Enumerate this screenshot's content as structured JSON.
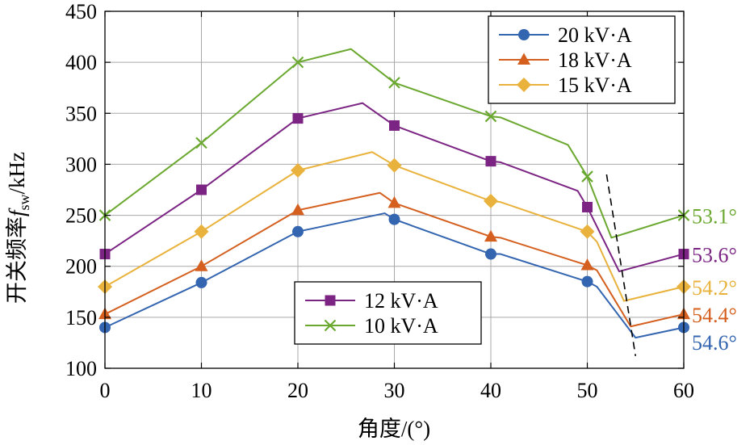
{
  "chart_data": {
    "type": "line",
    "xlabel": "角度/(°)",
    "ylabel": {
      "prefix": "开关频率",
      "var": "f",
      "sub": "sw",
      "suffix": "/kHz"
    },
    "xlim": [
      0,
      60
    ],
    "ylim": [
      100,
      450
    ],
    "xticks": [
      0,
      10,
      20,
      30,
      40,
      50,
      60
    ],
    "yticks": [
      100,
      150,
      200,
      250,
      300,
      350,
      400,
      450
    ],
    "grid": true,
    "legends": [
      {
        "placement": "top-right",
        "series": [
          "20 kV·A",
          "18 kV·A",
          "15 kV·A"
        ]
      },
      {
        "placement": "bottom-center",
        "series": [
          "12 kV·A",
          "10 kV·A"
        ]
      }
    ],
    "series": [
      {
        "name": "20 kV·A",
        "color": "#3465b0",
        "marker": "circle",
        "x": [
          0,
          10,
          20,
          29,
          30,
          40,
          41,
          50,
          51,
          55,
          60
        ],
        "y": [
          140,
          184,
          234,
          252,
          246,
          212,
          212,
          185,
          180,
          130,
          140
        ],
        "marker_x": [
          0,
          10,
          20,
          30,
          40,
          50,
          60
        ],
        "marker_y": [
          140,
          184,
          234,
          246,
          212,
          185,
          140
        ]
      },
      {
        "name": "18 kV·A",
        "color": "#d45f1e",
        "marker": "triangle",
        "x": [
          0,
          10,
          20,
          28.5,
          30,
          40,
          41,
          50,
          51,
          54.5,
          60
        ],
        "y": [
          153,
          200,
          255,
          272,
          262,
          229,
          228,
          201,
          196,
          141,
          153
        ],
        "marker_x": [
          0,
          10,
          20,
          30,
          40,
          50,
          60
        ],
        "marker_y": [
          153,
          200,
          255,
          262,
          229,
          201,
          153
        ]
      },
      {
        "name": "15 kV·A",
        "color": "#e8b23c",
        "marker": "diamond",
        "x": [
          0,
          10,
          20,
          27.7,
          30,
          40,
          41,
          50,
          51,
          53.8,
          60
        ],
        "y": [
          180,
          234,
          294,
          312,
          299,
          264,
          263,
          234,
          224,
          166,
          180
        ],
        "marker_x": [
          0,
          10,
          20,
          30,
          40,
          50,
          60
        ],
        "marker_y": [
          180,
          234,
          294,
          299,
          264,
          234,
          180
        ]
      },
      {
        "name": "12 kV·A",
        "color": "#7b2483",
        "marker": "square",
        "x": [
          0,
          10,
          20,
          26.7,
          30,
          40,
          41,
          49,
          50,
          53.3,
          60
        ],
        "y": [
          212,
          275,
          345,
          360,
          338,
          303,
          302,
          274,
          258,
          195,
          212
        ],
        "marker_x": [
          0,
          10,
          20,
          30,
          40,
          50,
          60
        ],
        "marker_y": [
          212,
          275,
          345,
          338,
          303,
          258,
          212
        ]
      },
      {
        "name": "10 kV·A",
        "color": "#6aa82f",
        "marker": "x",
        "x": [
          0,
          10,
          20,
          25.5,
          30,
          40,
          41,
          48,
          50,
          52.5,
          60
        ],
        "y": [
          250,
          321,
          400,
          413,
          380,
          347,
          346,
          319,
          288,
          228,
          250
        ],
        "marker_x": [
          0,
          10,
          20,
          30,
          40,
          50,
          60
        ],
        "marker_y": [
          250,
          321,
          400,
          380,
          347,
          288,
          250
        ]
      }
    ],
    "annotations": [
      {
        "text": "53.1°",
        "color": "#6aa82f",
        "y": 250
      },
      {
        "text": "53.6°",
        "color": "#7b2483",
        "y": 212
      },
      {
        "text": "54.2°",
        "color": "#e8b23c",
        "y": 180
      },
      {
        "text": "54.4°",
        "color": "#d45f1e",
        "y": 153
      },
      {
        "text": "54.6°",
        "color": "#3465b0",
        "y": 126
      }
    ],
    "dashed_line": {
      "from": [
        52,
        290
      ],
      "to": [
        55,
        112
      ]
    }
  }
}
